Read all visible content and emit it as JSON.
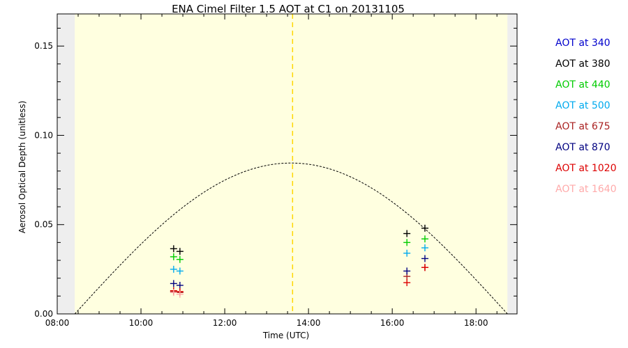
{
  "chart_data": {
    "type": "scatter",
    "title": "ENA Cimel Filter 1.5 AOT at C1 on 20131105",
    "xlabel": "Time (UTC)",
    "ylabel": "Aerosol Optical Depth (unitless)",
    "xlim": [
      8.0,
      18.98
    ],
    "ylim": [
      0.0,
      0.168
    ],
    "x_ticks": [
      8,
      10,
      12,
      14,
      16,
      18
    ],
    "x_tick_labels": [
      "08:00",
      "10:00",
      "12:00",
      "14:00",
      "16:00",
      "18:00"
    ],
    "y_ticks": [
      0.0,
      0.05,
      0.1,
      0.15
    ],
    "y_tick_labels": [
      "0.00",
      "0.05",
      "0.10",
      "0.15"
    ],
    "daylight_range": [
      8.42,
      18.75
    ],
    "solar_noon": 13.62,
    "solar_curve_peak": 0.0845,
    "colors": {
      "daylight_fill": "#ffffe0",
      "night_fill": "#eeeeee",
      "noon_line": "#ffd700",
      "curve": "#000000"
    },
    "legend_position": "right",
    "series": [
      {
        "name": "AOT at 340",
        "color": "#0000cc",
        "x": [],
        "y": []
      },
      {
        "name": "AOT at 380",
        "color": "#000000",
        "x": [
          10.78,
          10.93,
          16.35,
          16.78
        ],
        "y": [
          0.0365,
          0.035,
          0.045,
          0.048
        ]
      },
      {
        "name": "AOT at 440",
        "color": "#00cc00",
        "x": [
          10.78,
          10.93,
          16.35,
          16.78
        ],
        "y": [
          0.032,
          0.0305,
          0.04,
          0.042
        ]
      },
      {
        "name": "AOT at 500",
        "color": "#00aaee",
        "x": [
          10.78,
          10.93,
          16.35,
          16.78
        ],
        "y": [
          0.025,
          0.024,
          0.034,
          0.037
        ]
      },
      {
        "name": "AOT at 675",
        "color": "#aa2222",
        "x": [
          10.78,
          10.93,
          16.35,
          16.78
        ],
        "y": [
          0.0125,
          0.012,
          0.021,
          0.026
        ]
      },
      {
        "name": "AOT at 870",
        "color": "#000080",
        "x": [
          10.78,
          10.93,
          16.35,
          16.78
        ],
        "y": [
          0.017,
          0.016,
          0.024,
          0.031
        ]
      },
      {
        "name": "AOT at 1020",
        "color": "#dd0000",
        "x": [
          10.78,
          10.93,
          16.35,
          16.78
        ],
        "y": [
          0.013,
          0.0125,
          0.0175,
          0.026
        ]
      },
      {
        "name": "AOT at 1640",
        "color": "#ffaaaa",
        "x": [
          10.78,
          10.93
        ],
        "y": [
          0.012,
          0.011
        ]
      }
    ]
  }
}
